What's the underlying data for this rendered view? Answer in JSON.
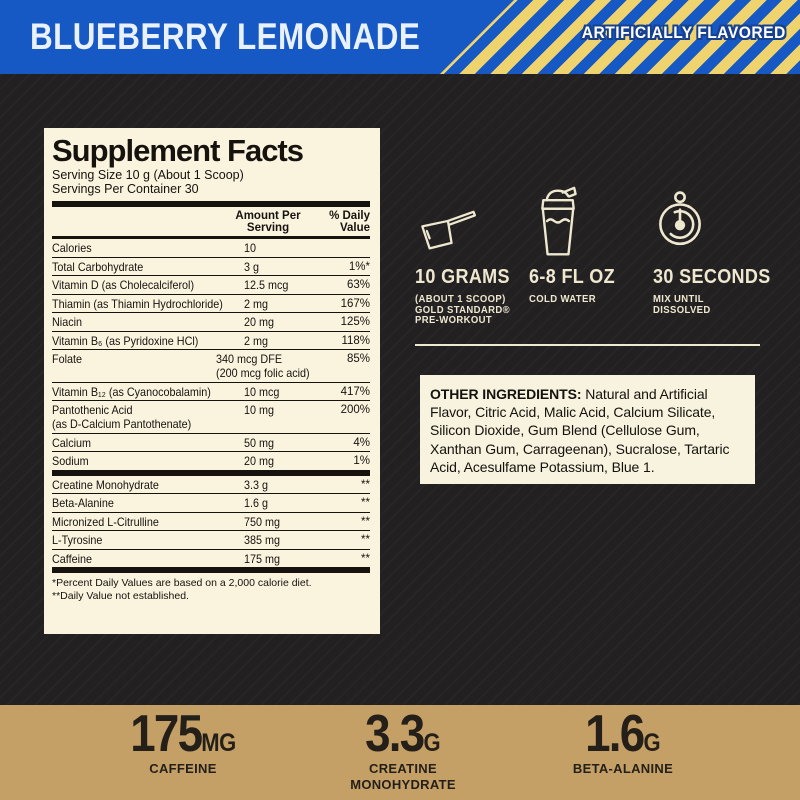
{
  "banner": {
    "flavor": "BLUEBERRY LEMONADE",
    "flavored_note": "ARTIFICIALLY FLAVORED",
    "blue": "#1659c4",
    "stripe_yellow": "#efd36e"
  },
  "facts": {
    "title": "Supplement Facts",
    "serving_size": "Serving Size 10 g (About 1 Scoop)",
    "servings_per_container": "Servings Per Container 30",
    "amount_header": "Amount Per\nServing",
    "dv_header": "% Daily\nValue",
    "rows": [
      {
        "name": "Calories",
        "amount": "10",
        "dv": ""
      },
      {
        "name": "Total Carbohydrate",
        "amount": "3 g",
        "dv": "1%*"
      },
      {
        "name": "Vitamin D (as Cholecalciferol)",
        "amount": "12.5 mcg",
        "dv": "63%"
      },
      {
        "name": "Thiamin (as Thiamin Hydrochloride)",
        "amount": "2 mg",
        "dv": "167%"
      },
      {
        "name": "Niacin",
        "amount": "20 mg",
        "dv": "125%"
      },
      {
        "name": "Vitamin B₆ (as Pyridoxine HCl)",
        "amount": "2 mg",
        "dv": "118%"
      },
      {
        "name": "Folate",
        "amount": "340 mcg DFE",
        "amount2": "(200 mcg folic acid)",
        "dv": "85%"
      },
      {
        "name": "Vitamin B₁₂ (as Cyanocobalamin)",
        "amount": "10 mcg",
        "dv": "417%"
      },
      {
        "name": "Pantothenic Acid",
        "name2": "(as D-Calcium Pantothenate)",
        "amount": "10 mg",
        "dv": "200%"
      },
      {
        "name": "Calcium",
        "amount": "50 mg",
        "dv": "4%"
      },
      {
        "name": "Sodium",
        "amount": "20 mg",
        "dv": "1%",
        "section_break_after": true
      },
      {
        "name": "Creatine Monohydrate",
        "amount": "3.3 g",
        "dv": "**"
      },
      {
        "name": "Beta-Alanine",
        "amount": "1.6 g",
        "dv": "**"
      },
      {
        "name": "Micronized L-Citrulline",
        "amount": "750 mg",
        "dv": "**"
      },
      {
        "name": "L-Tyrosine",
        "amount": "385 mg",
        "dv": "**"
      },
      {
        "name": "Caffeine",
        "amount": "175 mg",
        "dv": "**"
      }
    ],
    "footnote1": "*Percent Daily Values are based on a 2,000 calorie diet.",
    "footnote2": "**Daily Value not established."
  },
  "instructions": {
    "items": [
      {
        "icon": "scoop-icon",
        "title": "10 GRAMS",
        "sub": "(ABOUT 1 SCOOP)\nGOLD STANDARD®\nPRE-WORKOUT"
      },
      {
        "icon": "shaker-bottle-icon",
        "title": "6-8 FL OZ",
        "sub": "COLD WATER"
      },
      {
        "icon": "timer-icon",
        "title": "30 SECONDS",
        "sub": "MIX UNTIL\nDISSOLVED"
      }
    ]
  },
  "other_ingredients": {
    "label": "OTHER INGREDIENTS:",
    "text": " Natural and Artificial Flavor, Citric Acid, Malic Acid, Calcium Silicate, Silicon Dioxide, Gum Blend (Cellulose Gum, Xanthan Gum, Carrageenan), Sucralose, Tartaric Acid, Acesulfame Potassium, Blue 1."
  },
  "stats": {
    "items": [
      {
        "value": "175",
        "unit": "MG",
        "label": "CAFFEINE"
      },
      {
        "value": "3.3",
        "unit": "G",
        "label": "CREATINE\nMONOHYDRATE"
      },
      {
        "value": "1.6",
        "unit": "G",
        "label": "BETA-ALANINE"
      }
    ],
    "gold": "#c5a066"
  }
}
